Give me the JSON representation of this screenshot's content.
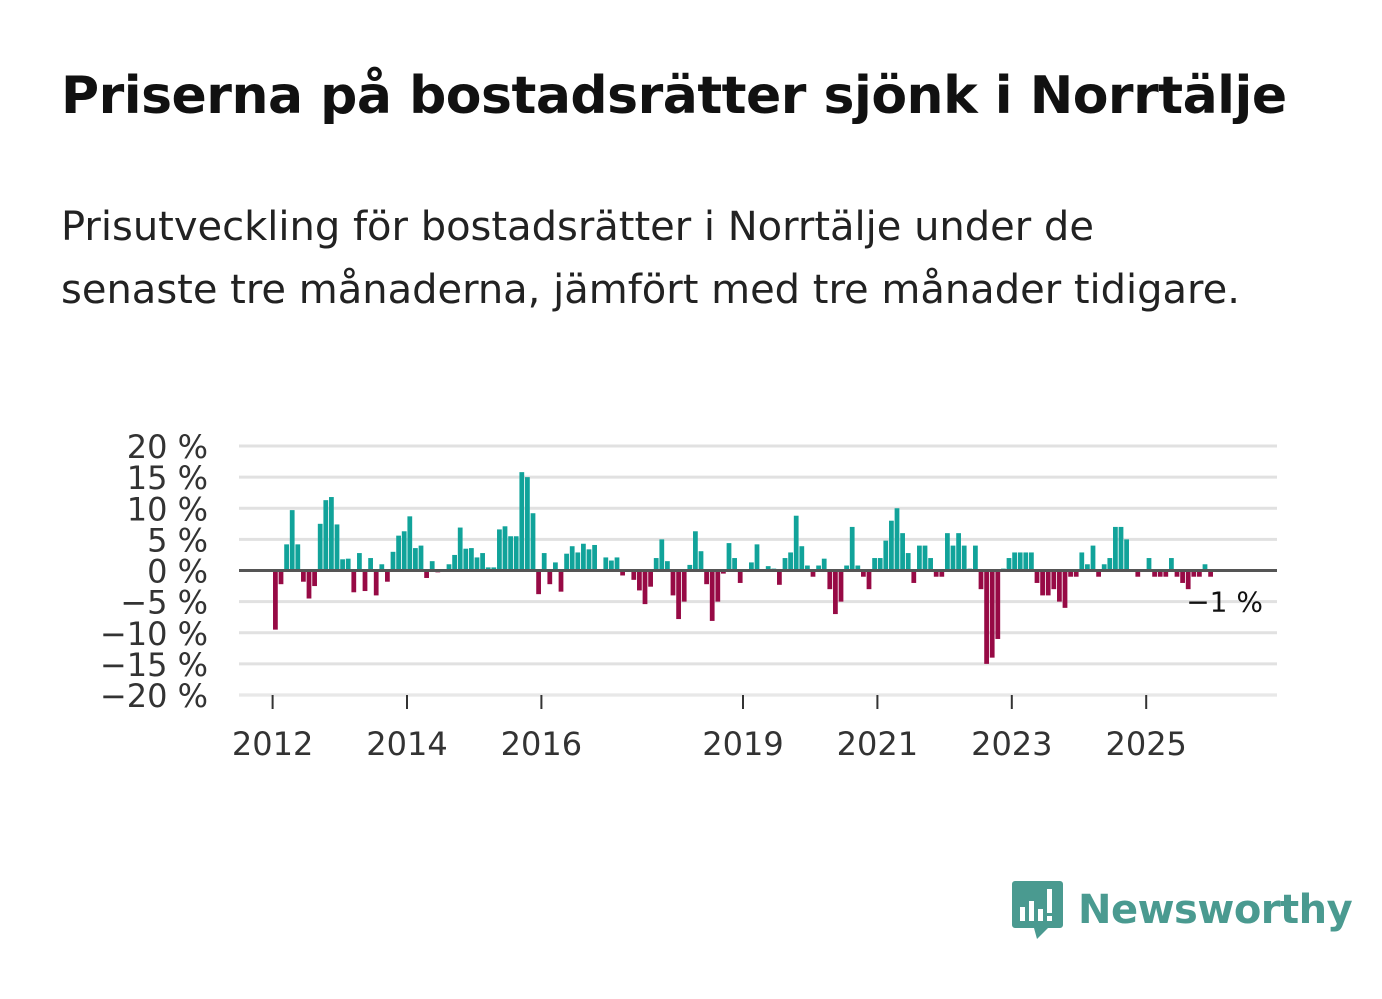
{
  "title": "Priserna på bostadsrätter sjönk i Norrtälje",
  "subtitle": "Prisutveckling för bostadsrätter i Norrtälje under de senaste tre månaderna, jämfört med tre månader tidigare.",
  "brand": {
    "name": "Newsworthy",
    "color": "#4a9a90"
  },
  "colors": {
    "positive": "#11a39a",
    "negative": "#970a45",
    "grid": "#e1e1e1",
    "zero": "#555555"
  },
  "chart_data": {
    "type": "bar",
    "ylabel": "",
    "xlabel": "",
    "ylim": [
      -20,
      20
    ],
    "yticks": [
      20,
      15,
      10,
      5,
      0,
      -5,
      -10,
      -15,
      -20
    ],
    "ytick_labels": [
      "20 %",
      "15 %",
      "10 %",
      "5 %",
      "0 %",
      "−5 %",
      "−10 %",
      "−15 %",
      "−20 %"
    ],
    "start": {
      "year": 2012,
      "month": 1
    },
    "xtick_labels": [
      "2012",
      "2014",
      "2016",
      "2019",
      "2021",
      "2023",
      "2025"
    ],
    "xtick_years": [
      2012,
      2014,
      2016,
      2019,
      2021,
      2023,
      2025
    ],
    "last_label": "−1 %",
    "values": [
      -9.5,
      -2.2,
      4.2,
      9.7,
      4.2,
      -1.8,
      -4.5,
      -2.5,
      7.5,
      11.3,
      11.8,
      7.4,
      1.8,
      1.9,
      -3.5,
      2.8,
      -3.3,
      2.0,
      -4.0,
      1.0,
      -1.8,
      3.0,
      5.6,
      6.3,
      8.7,
      3.6,
      4.0,
      -1.2,
      1.5,
      -0.3,
      0.0,
      1.0,
      2.5,
      6.9,
      3.5,
      3.6,
      2.1,
      2.8,
      0.5,
      0.5,
      6.6,
      7.1,
      5.5,
      5.5,
      15.8,
      15.0,
      9.2,
      -3.8,
      2.8,
      -2.2,
      1.3,
      -3.4,
      2.7,
      3.9,
      2.9,
      4.3,
      3.4,
      4.1,
      0.1,
      2.1,
      1.6,
      2.1,
      -0.8,
      -0.2,
      -1.5,
      -3.2,
      -5.4,
      -2.6,
      2.0,
      5.0,
      1.5,
      -4.0,
      -7.8,
      -5.0,
      0.9,
      6.3,
      3.1,
      -2.2,
      -8.1,
      -5.0,
      -0.5,
      4.4,
      2.0,
      -2.0,
      0.1,
      1.3,
      4.2,
      0.2,
      0.7,
      0.3,
      -2.3,
      2.0,
      2.9,
      8.8,
      3.9,
      0.8,
      -1.0,
      0.8,
      1.9,
      -3.0,
      -7.0,
      -5.0,
      0.8,
      7.0,
      0.8,
      -1.0,
      -3.0,
      2.0,
      2.0,
      4.8,
      8.0,
      10.0,
      6.0,
      2.8,
      -2.0,
      4.0,
      4.0,
      2.0,
      -1.0,
      -1.0,
      6.0,
      4.0,
      6.0,
      4.0,
      0.3,
      4.0,
      -3.0,
      -15.0,
      -14.0,
      -11.0,
      0.3,
      2.0,
      2.9,
      2.9,
      2.9,
      2.9,
      -2.0,
      -4.0,
      -4.0,
      -3.0,
      -5.0,
      -6.0,
      -1.0,
      -1.0,
      2.9,
      1.0,
      4.0,
      -1.0,
      1.0,
      2.0,
      7.0,
      7.0,
      5.0,
      0.2,
      -1.0,
      0.2,
      2.0,
      -1.0,
      -1.0,
      -1.0,
      2.0,
      -1.0,
      -2.0,
      -3.0,
      -1.0,
      -1.0,
      1.0,
      -1.0
    ]
  }
}
